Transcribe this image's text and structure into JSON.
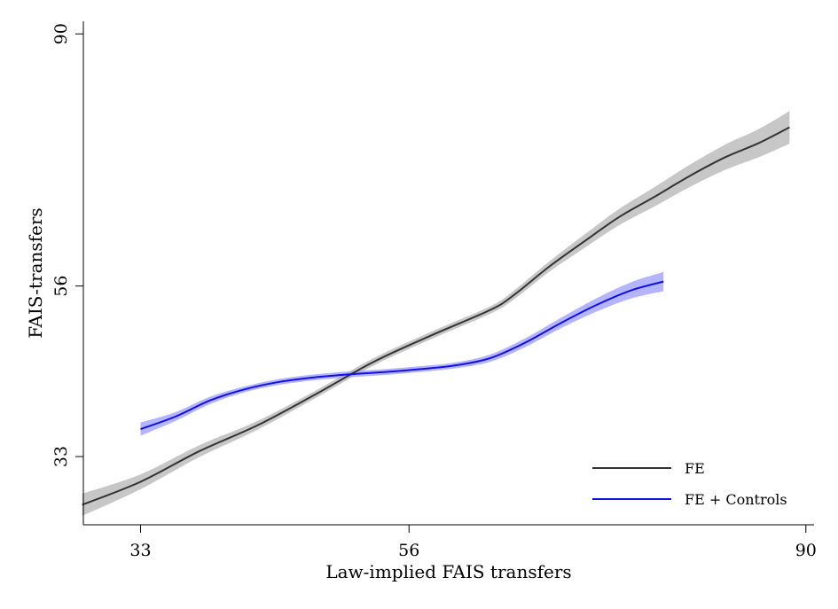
{
  "chart_data": {
    "type": "line",
    "xlabel": "Law-implied FAIS transfers",
    "ylabel": "FAIS-transfers",
    "xlim": [
      28.1,
      90.7
    ],
    "ylim": [
      23.8,
      91.7
    ],
    "xticks": [
      33,
      56,
      90
    ],
    "yticks": [
      33,
      56,
      90
    ],
    "grid": false,
    "legend_position": "bottom-right",
    "series": [
      {
        "name": "FE",
        "color": "#333333",
        "band_color": "#bdbdbd",
        "x": [
          28,
          33,
          38,
          43,
          48,
          53,
          58,
          63,
          65,
          68,
          71,
          74,
          77,
          80,
          83,
          86,
          88.6
        ],
        "y": [
          26.5,
          29.6,
          33.7,
          37.2,
          41.4,
          45.8,
          49.4,
          52.8,
          54.8,
          58.6,
          62.0,
          65.3,
          68.0,
          70.8,
          73.3,
          75.3,
          77.4
        ],
        "band": [
          1.5,
          1.0,
          0.8,
          0.6,
          0.5,
          0.5,
          0.5,
          0.5,
          0.6,
          0.7,
          0.9,
          1.1,
          1.3,
          1.5,
          1.7,
          1.9,
          2.2
        ]
      },
      {
        "name": "FE + Controls",
        "color": "#1010e0",
        "band_color": "#9c9cff",
        "x": [
          33,
          36,
          39,
          42,
          45,
          48,
          51,
          54,
          57,
          60,
          63,
          66,
          69,
          72,
          75,
          77.8
        ],
        "y": [
          36.7,
          38.4,
          40.6,
          42.1,
          43.1,
          43.7,
          44.1,
          44.4,
          44.8,
          45.3,
          46.3,
          48.4,
          51.0,
          53.4,
          55.4,
          56.6
        ],
        "band": [
          0.9,
          0.6,
          0.5,
          0.4,
          0.4,
          0.4,
          0.4,
          0.4,
          0.4,
          0.4,
          0.5,
          0.6,
          0.7,
          0.9,
          1.1,
          1.3
        ]
      }
    ]
  }
}
